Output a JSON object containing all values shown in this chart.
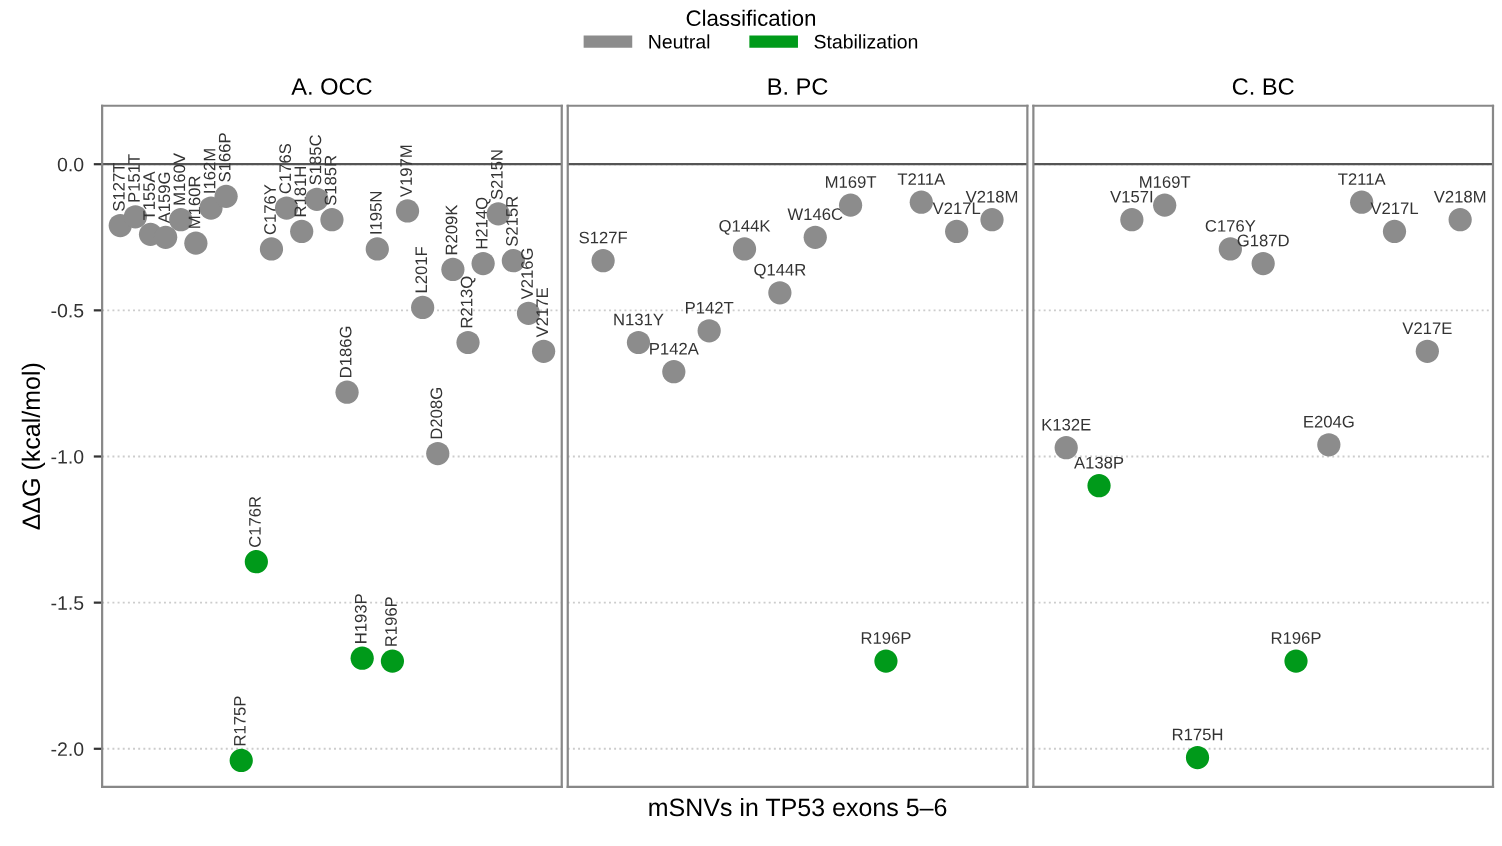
{
  "chart_data": [
    {
      "type": "scatter",
      "title": "A. OCC",
      "ylabel": "ΔΔG (kcal/mol)",
      "legend_title": "Classification",
      "legend": "top",
      "tick_labels": "y",
      "grid": "y",
      "marker": "circle",
      "categories": [
        "S127T",
        "P151T",
        "T155A",
        "A159G",
        "M160V",
        "M160R",
        "I162M",
        "S166P",
        "R175P",
        "C176R",
        "C176Y",
        "C176S",
        "R181H",
        "S185C",
        "S185R",
        "D186G",
        "H193P",
        "I195N",
        "R196P",
        "V197M",
        "L201F",
        "D208G",
        "R209K",
        "R213Q",
        "H214Q",
        "S215N",
        "S215R",
        "V216G",
        "V217E"
      ],
      "series": [
        {
          "name": "Neutral",
          "color": "#8c8c8c",
          "values": [
            -0.21,
            -0.18,
            -0.24,
            -0.25,
            -0.19,
            -0.27,
            -0.15,
            -0.11,
            null,
            null,
            -0.29,
            -0.15,
            -0.23,
            -0.12,
            -0.19,
            -0.78,
            null,
            -0.29,
            null,
            -0.16,
            -0.49,
            -0.99,
            -0.36,
            -0.61,
            -0.34,
            -0.17,
            -0.33,
            -0.51,
            -0.64
          ]
        },
        {
          "name": "Stabilization",
          "color": "#009a1a",
          "values": [
            null,
            null,
            null,
            null,
            null,
            null,
            null,
            null,
            -2.04,
            -1.36,
            null,
            null,
            null,
            null,
            null,
            null,
            -1.69,
            null,
            -1.7,
            null,
            null,
            null,
            null,
            null,
            null,
            null,
            null,
            null,
            null
          ]
        }
      ],
      "ylim": [
        -2.13,
        0.2
      ],
      "yticks": [
        {
          "value": 0,
          "label": "0.0"
        },
        {
          "value": -0.5,
          "label": "-0.5"
        },
        {
          "value": -1,
          "label": "-1.0"
        },
        {
          "value": -1.5,
          "label": "-1.5"
        },
        {
          "value": -2,
          "label": "-2.0"
        }
      ],
      "ref_lines": [
        {
          "axis": "y",
          "value": 0
        }
      ]
    },
    {
      "type": "scatter",
      "title": "B. PC",
      "xlabel": "mSNVs in TP53 exons 5–6",
      "tick_labels": false,
      "grid": "y",
      "marker": "circle",
      "categories": [
        "S127F",
        "N131Y",
        "P142A",
        "P142T",
        "Q144K",
        "Q144R",
        "W146C",
        "M169T",
        "R196P",
        "T211A",
        "V217L",
        "V218M"
      ],
      "series": [
        {
          "color": "#8c8c8c",
          "values": [
            -0.33,
            -0.61,
            -0.71,
            -0.57,
            -0.29,
            -0.44,
            -0.25,
            -0.14,
            null,
            -0.13,
            -0.23,
            -0.19
          ]
        },
        {
          "color": "#009a1a",
          "values": [
            null,
            null,
            null,
            null,
            null,
            null,
            null,
            null,
            -1.7,
            null,
            null,
            null
          ]
        }
      ],
      "ylim": [
        -2.13,
        0.2
      ],
      "yticks": [
        0,
        -0.5,
        -1,
        -1.5,
        -2
      ],
      "ref_lines": [
        {
          "axis": "y",
          "value": 0
        }
      ]
    },
    {
      "type": "scatter",
      "title": "C. BC",
      "tick_labels": false,
      "grid": "y",
      "marker": "circle",
      "categories": [
        "K132E",
        "A138P",
        "V157I",
        "M169T",
        "R175H",
        "C176Y",
        "G187D",
        "R196P",
        "E204G",
        "T211A",
        "V217L",
        "V217E",
        "V218M"
      ],
      "series": [
        {
          "color": "#8c8c8c",
          "values": [
            -0.97,
            null,
            -0.19,
            -0.14,
            null,
            -0.29,
            -0.34,
            null,
            -0.96,
            -0.13,
            -0.23,
            -0.64,
            -0.19
          ]
        },
        {
          "color": "#009a1a",
          "values": [
            null,
            -1.1,
            null,
            null,
            -2.03,
            null,
            null,
            -1.7,
            null,
            null,
            null,
            null,
            null
          ]
        }
      ],
      "ylim": [
        -2.13,
        0.2
      ],
      "yticks": [
        0,
        -0.5,
        -1,
        -1.5,
        -2
      ],
      "ref_lines": [
        {
          "axis": "y",
          "value": 0
        }
      ]
    }
  ]
}
